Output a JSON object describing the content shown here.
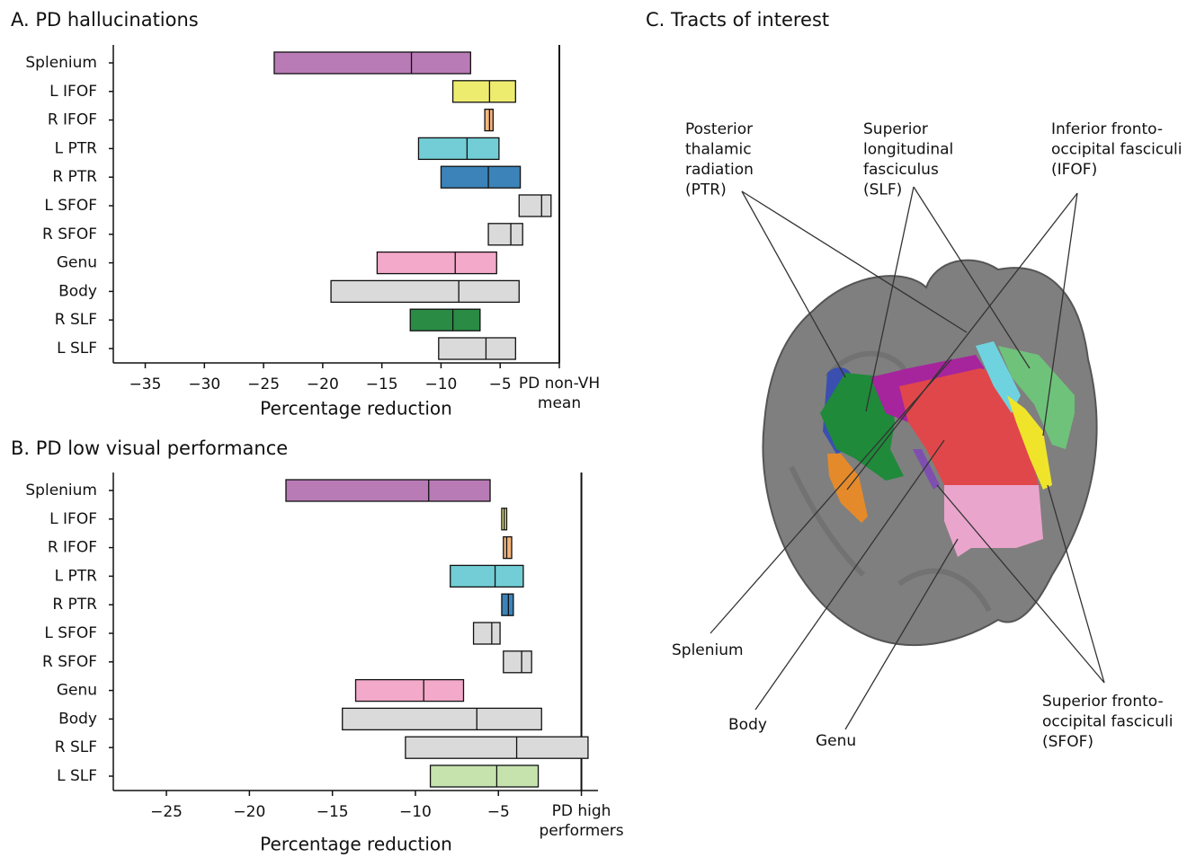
{
  "chart_data": [
    {
      "type": "range-bar",
      "title": "A. PD hallucinations",
      "x_label": "Percentage reduction",
      "categories": [
        "Splenium",
        "L IFOF",
        "R IFOF",
        "L PTR",
        "R PTR",
        "L SFOF",
        "R SFOF",
        "Genu",
        "Body",
        "R SLF",
        "L SLF"
      ],
      "lows": [
        -24.1,
        -9.0,
        -6.3,
        -11.9,
        -10.0,
        -3.4,
        -6.0,
        -15.4,
        -19.3,
        -12.6,
        -10.2
      ],
      "mids": [
        -12.5,
        -5.9,
        -5.9,
        -7.8,
        -6.0,
        -1.5,
        -4.1,
        -8.8,
        -8.5,
        -9.0,
        -6.2
      ],
      "highs": [
        -7.5,
        -3.7,
        -5.6,
        -5.1,
        -3.3,
        -0.7,
        -3.1,
        -5.3,
        -3.4,
        -6.7,
        -3.7
      ],
      "colors": [
        "#b87bb6",
        "#eeec6e",
        "#f4b67c",
        "#72cdd6",
        "#3b83b9",
        "#dadada",
        "#dadada",
        "#f3a9c9",
        "#dadada",
        "#2a8b45",
        "#dadada"
      ],
      "xlim": [
        -37.7,
        0
      ],
      "xticks": [
        {
          "value": -35,
          "label": "−35"
        },
        {
          "value": -30,
          "label": "−30"
        },
        {
          "value": -25,
          "label": "−25"
        },
        {
          "value": -20,
          "label": "−20"
        },
        {
          "value": -15,
          "label": "−15"
        },
        {
          "value": -10,
          "label": "−10"
        },
        {
          "value": -5,
          "label": "−5"
        },
        {
          "value": 0,
          "label": "PD non-VH mean"
        }
      ]
    },
    {
      "type": "range-bar",
      "title": "B. PD low visual performance",
      "x_label": "Percentage reduction",
      "categories": [
        "Splenium",
        "L IFOF",
        "R IFOF",
        "L PTR",
        "R PTR",
        "L SFOF",
        "R SFOF",
        "Genu",
        "Body",
        "R SLF",
        "L SLF"
      ],
      "lows": [
        -17.8,
        -4.8,
        -4.7,
        -7.9,
        -4.8,
        -6.5,
        -4.7,
        -13.6,
        -14.4,
        -10.6,
        -9.1
      ],
      "mids": [
        -9.2,
        -4.65,
        -4.5,
        -5.2,
        -4.4,
        -5.4,
        -3.6,
        -9.5,
        -6.3,
        -3.9,
        -5.1
      ],
      "highs": [
        -5.5,
        -4.5,
        -4.2,
        -3.5,
        -4.1,
        -4.9,
        -3.0,
        -7.1,
        -2.4,
        0.4,
        -2.6
      ],
      "colors": [
        "#b87bb6",
        "#e6e58a",
        "#f4b67c",
        "#72cdd6",
        "#3b83b9",
        "#dadada",
        "#dadada",
        "#f3a9c9",
        "#dadada",
        "#dadada",
        "#c6e3ae"
      ],
      "xlim": [
        -28.2,
        1.0
      ],
      "xticks": [
        {
          "value": -25,
          "label": "−25"
        },
        {
          "value": -20,
          "label": "−20"
        },
        {
          "value": -15,
          "label": "−15"
        },
        {
          "value": -10,
          "label": "−10"
        },
        {
          "value": -5,
          "label": "−5"
        },
        {
          "value": 0,
          "label": "PD high performers mean"
        }
      ]
    }
  ],
  "diagram": {
    "title": "C. Tracts of interest",
    "labels": [
      {
        "lines": [
          "Posterior",
          "thalamic",
          "radiation",
          "(PTR)"
        ]
      },
      {
        "lines": [
          "Superior",
          "longitudinal",
          "fasciculus",
          "(SLF)"
        ]
      },
      {
        "lines": [
          "Inferior fronto-",
          "occipital fasciculi",
          "(IFOF)"
        ]
      },
      {
        "lines": [
          "Splenium"
        ]
      },
      {
        "lines": [
          "Body"
        ]
      },
      {
        "lines": [
          "Genu"
        ]
      },
      {
        "lines": [
          "Superior fronto-",
          "occipital fasciculi",
          "(SFOF)"
        ]
      }
    ]
  }
}
